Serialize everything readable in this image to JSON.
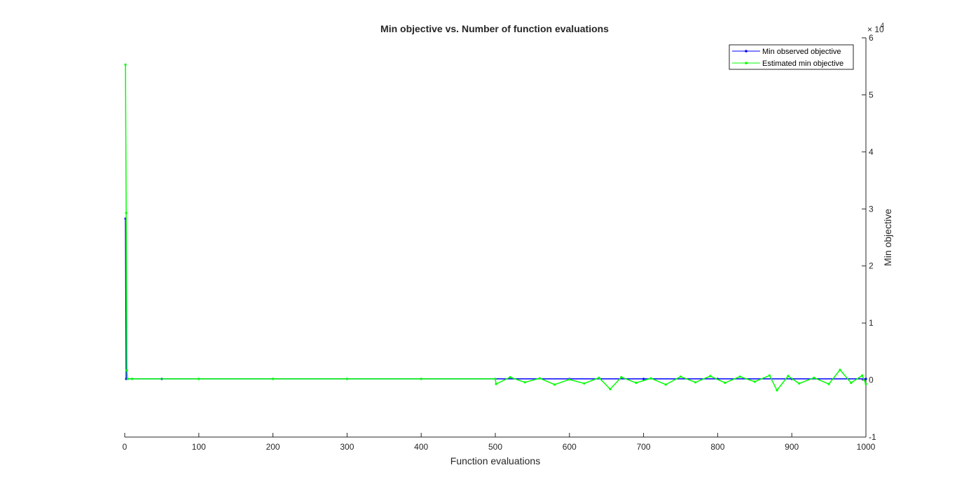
{
  "chart_data": {
    "type": "line",
    "title": "Min objective vs. Number of function evaluations",
    "xlabel": "Function evaluations",
    "ylabel": "Min objective",
    "xlim": [
      0,
      1000
    ],
    "ylim": [
      -1,
      6
    ],
    "y_multiplier_label": "× 10",
    "y_multiplier_exponent": "4",
    "x_ticks": [
      "0",
      "100",
      "200",
      "300",
      "400",
      "500",
      "600",
      "700",
      "800",
      "900",
      "1000"
    ],
    "y_ticks": [
      "-1",
      "0",
      "1",
      "2",
      "3",
      "4",
      "5",
      "6"
    ],
    "grid": false,
    "legend_position": "top-right",
    "series": [
      {
        "name": "Min observed objective",
        "color": "#0000ff",
        "x": [
          1,
          2,
          3,
          4,
          10,
          50,
          100,
          200,
          300,
          400,
          500,
          600,
          700,
          800,
          900,
          1000
        ],
        "values": [
          2.83,
          0.02,
          0.02,
          0.02,
          0.02,
          0.02,
          0.02,
          0.02,
          0.02,
          0.02,
          0.02,
          0.02,
          0.02,
          0.02,
          0.02,
          0.02
        ]
      },
      {
        "name": "Estimated min objective",
        "color": "#00ff00",
        "x": [
          1,
          2,
          3,
          4,
          10,
          100,
          200,
          300,
          400,
          500,
          501,
          520,
          540,
          560,
          580,
          600,
          620,
          640,
          655,
          670,
          690,
          710,
          730,
          750,
          770,
          790,
          810,
          830,
          850,
          870,
          880,
          895,
          910,
          930,
          950,
          965,
          980,
          995,
          1000
        ],
        "values": [
          5.53,
          2.93,
          0.17,
          0.02,
          0.02,
          0.02,
          0.02,
          0.02,
          0.02,
          0.02,
          -0.07,
          0.05,
          -0.04,
          0.03,
          -0.08,
          0.01,
          -0.06,
          0.04,
          -0.16,
          0.05,
          -0.05,
          0.03,
          -0.08,
          0.06,
          -0.04,
          0.07,
          -0.05,
          0.06,
          -0.03,
          0.08,
          -0.18,
          0.07,
          -0.06,
          0.04,
          -0.07,
          0.18,
          -0.05,
          0.08,
          -0.07
        ]
      }
    ]
  }
}
